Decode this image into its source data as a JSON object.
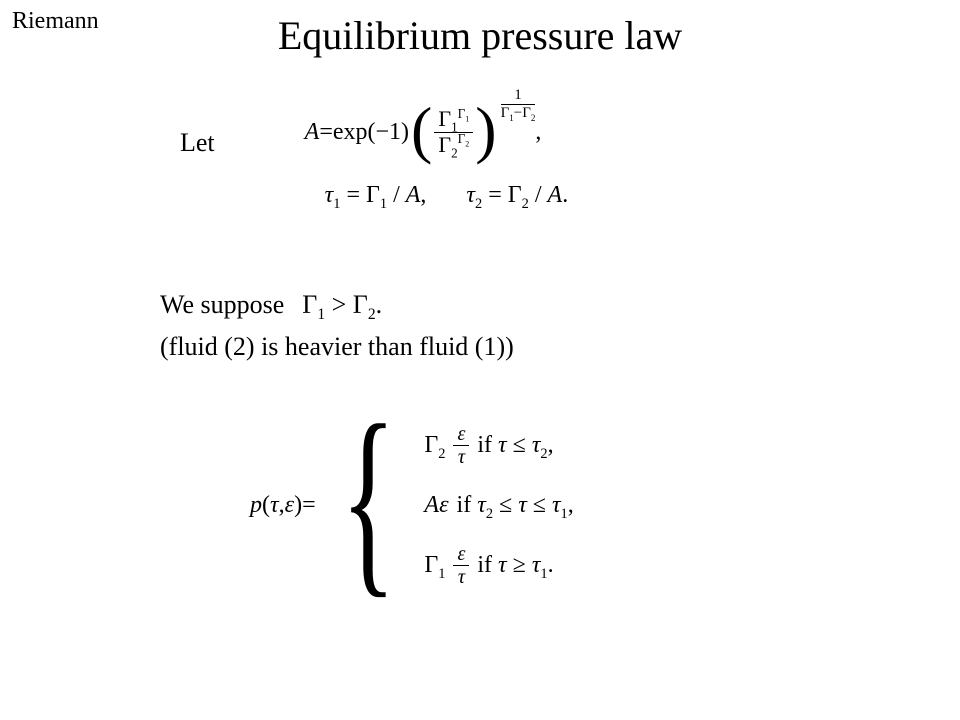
{
  "corner": "Riemann",
  "title": "Equilibrium pressure law",
  "let_label": "Let",
  "eq1": {
    "lhs": "A",
    "eq": " = ",
    "exp_neg1": "exp(−1)",
    "frac_num_base": "Γ",
    "frac_num_sub": "1",
    "frac_num_sup_base": "Γ",
    "frac_num_sup_sub": "1",
    "frac_den_base": "Γ",
    "frac_den_sub": "2",
    "frac_den_sup_base": "Γ",
    "frac_den_sup_sub": "2",
    "outer_exp_num": "1",
    "outer_exp_den_a": "Γ",
    "outer_exp_den_a_sub": "1",
    "outer_exp_minus": "−",
    "outer_exp_den_b": "Γ",
    "outer_exp_den_b_sub": "2",
    "trailing": ","
  },
  "eq2": {
    "tau1_lhs": "τ",
    "tau1_sub": "1",
    "tau1_rhs_a": "Γ",
    "tau1_rhs_a_sub": "1",
    "div": " / ",
    "A": "A",
    "comma": ",",
    "tau2_lhs": "τ",
    "tau2_sub": "2",
    "tau2_rhs_a": "Γ",
    "tau2_rhs_a_sub": "2",
    "period": "."
  },
  "suppose": {
    "label": "We suppose",
    "g1": "Γ",
    "g1_sub": "1",
    "gt": " > ",
    "g2": "Γ",
    "g2_sub": "2",
    "period": ".",
    "heavier": "(fluid (2) is heavier than fluid (1))"
  },
  "piecewise": {
    "lhs_p": "p",
    "lhs_tau": "τ",
    "lhs_eps": "ε",
    "eq": " = ",
    "case1": {
      "coef": "Γ",
      "coef_sub": "2",
      "frac_num": "ε",
      "frac_den": "τ",
      "if": " if ",
      "tau": "τ",
      "le": " ≤ ",
      "tau2": "τ",
      "tau2_sub": "2",
      "comma": ","
    },
    "case2": {
      "A": "A",
      "eps": "ε",
      "if": " if ",
      "tau2": "τ",
      "tau2_sub": "2",
      "le1": " ≤ ",
      "tau": "τ",
      "le2": " ≤ ",
      "tau1": "τ",
      "tau1_sub": "1",
      "comma": ","
    },
    "case3": {
      "coef": "Γ",
      "coef_sub": "1",
      "frac_num": "ε",
      "frac_den": "τ",
      "if": " if ",
      "tau": "τ",
      "ge": " ≥ ",
      "tau1": "τ",
      "tau1_sub": "1",
      "period": "."
    }
  }
}
